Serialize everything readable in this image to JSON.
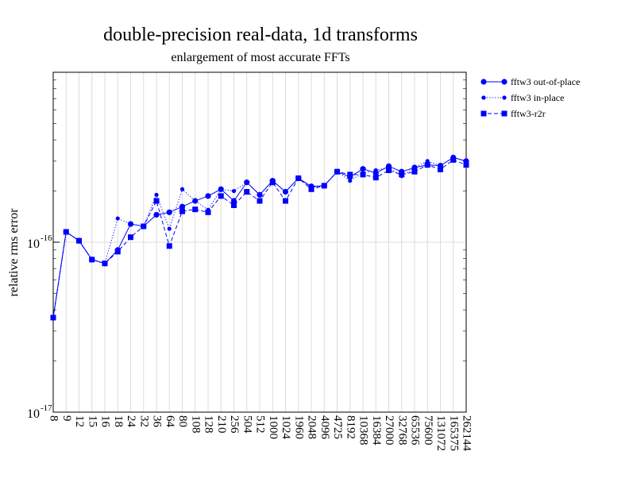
{
  "chart_data": {
    "type": "line",
    "title": "double-precision real-data, 1d transforms",
    "subtitle": "enlargement of most accurate FFTs",
    "xlabel": "",
    "ylabel": "relative rms error",
    "y_scale": "log",
    "ylim": [
      1e-17,
      1e-15
    ],
    "y_tick_labels": [
      {
        "value": 1e-17,
        "base": "10",
        "exp": "-17"
      },
      {
        "value": 1e-16,
        "base": "10",
        "exp": "-16"
      }
    ],
    "categories": [
      "8",
      "9",
      "12",
      "15",
      "16",
      "18",
      "24",
      "32",
      "36",
      "64",
      "80",
      "108",
      "128",
      "210",
      "256",
      "504",
      "512",
      "1000",
      "1024",
      "1960",
      "2048",
      "4096",
      "4725",
      "8192",
      "10368",
      "16384",
      "27000",
      "32768",
      "65536",
      "75600",
      "131072",
      "165375",
      "262144"
    ],
    "grid": "vertical",
    "legend_position": "right, outside plot",
    "colors": {
      "series": "#0000ff",
      "grid": "#dcdcdc",
      "axis": "#000000"
    },
    "series": [
      {
        "name": "fftw3 out-of-place",
        "style": "solid",
        "marker": "circle",
        "values": [
          3.6e-17,
          1.15e-16,
          1.02e-16,
          7.9e-17,
          7.5e-17,
          9e-17,
          1.28e-16,
          1.24e-16,
          1.45e-16,
          1.5e-16,
          1.62e-16,
          1.75e-16,
          1.87e-16,
          2.05e-16,
          1.75e-16,
          2.25e-16,
          1.9e-16,
          2.3e-16,
          1.98e-16,
          2.38e-16,
          2.13e-16,
          2.15e-16,
          2.6e-16,
          2.42e-16,
          2.7e-16,
          2.55e-16,
          2.8e-16,
          2.6e-16,
          2.75e-16,
          2.85e-16,
          2.82e-16,
          3.15e-16,
          3e-16
        ]
      },
      {
        "name": "fftw3 in-place",
        "style": "dotted",
        "marker": "small-circle",
        "values": [
          3.6e-17,
          1.15e-16,
          1.02e-16,
          7.9e-17,
          7.5e-17,
          1.38e-16,
          1.28e-16,
          1.24e-16,
          1.9e-16,
          1.2e-16,
          2.05e-16,
          1.75e-16,
          1.55e-16,
          2.05e-16,
          2e-16,
          2.25e-16,
          1.9e-16,
          2.3e-16,
          1.98e-16,
          2.38e-16,
          2.1e-16,
          2.15e-16,
          2.6e-16,
          2.3e-16,
          2.55e-16,
          2.65e-16,
          2.75e-16,
          2.45e-16,
          2.75e-16,
          3e-16,
          2.82e-16,
          3.15e-16,
          3e-16
        ]
      },
      {
        "name": "fftw3-r2r",
        "style": "dashed",
        "marker": "square",
        "values": [
          3.6e-17,
          1.15e-16,
          1.02e-16,
          7.9e-17,
          7.5e-17,
          8.8e-17,
          1.07e-16,
          1.24e-16,
          1.75e-16,
          9.5e-17,
          1.52e-16,
          1.56e-16,
          1.5e-16,
          1.87e-16,
          1.65e-16,
          1.98e-16,
          1.75e-16,
          2.25e-16,
          1.75e-16,
          2.38e-16,
          2.05e-16,
          2.15e-16,
          2.6e-16,
          2.5e-16,
          2.5e-16,
          2.4e-16,
          2.65e-16,
          2.5e-16,
          2.6e-16,
          2.85e-16,
          2.68e-16,
          3.05e-16,
          2.85e-16
        ]
      }
    ]
  }
}
